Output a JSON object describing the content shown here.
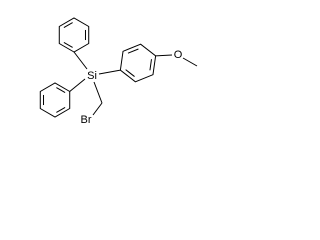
{
  "atoms": {
    "silicon": "Si",
    "bromine": "Br",
    "oxygen": "O"
  }
}
